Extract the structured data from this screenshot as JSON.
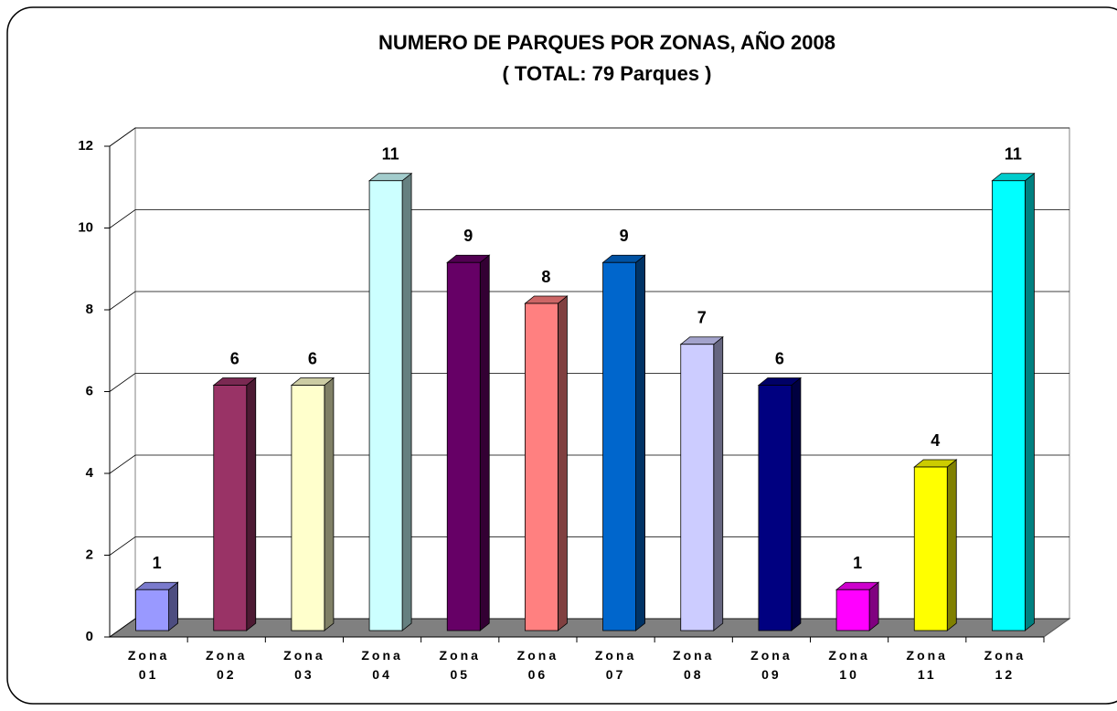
{
  "chart_data": {
    "type": "bar3d",
    "title": "NUMERO DE PARQUES POR ZONAS, AÑO 2008",
    "subtitle": "( TOTAL: 79 Parques )",
    "categories": [
      "Zona 01",
      "Zona 02",
      "Zona 03",
      "Zona 04",
      "Zona 05",
      "Zona 06",
      "Zona 07",
      "Zona 08",
      "Zona 09",
      "Zona 10",
      "Zona 11",
      "Zona 12"
    ],
    "values": [
      1,
      6,
      6,
      11,
      9,
      8,
      9,
      7,
      6,
      1,
      4,
      11
    ],
    "colors": [
      "#9999ff",
      "#993366",
      "#ffffcc",
      "#ccffff",
      "#660066",
      "#ff8080",
      "#0066cc",
      "#ccccff",
      "#000080",
      "#ff00ff",
      "#ffff00",
      "#00ffff"
    ],
    "ylim": [
      0,
      12
    ],
    "yticks": [
      0,
      2,
      4,
      6,
      8,
      10,
      12
    ],
    "grid": true
  }
}
